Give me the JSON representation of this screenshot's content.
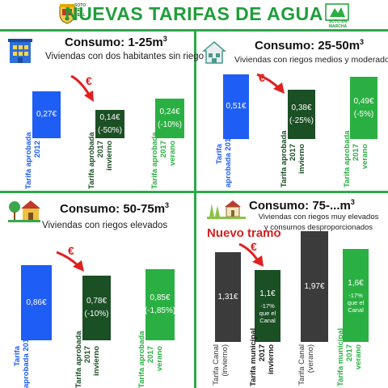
{
  "header": {
    "title": "NUEVAS TARIFAS DE AGUA",
    "logo_left_text": "SOTO DEL REAL",
    "logo_right_text": "SOTO EN MARCHA"
  },
  "colors": {
    "accent_green": "#2da84a",
    "bar_blue": "#1f5ef5",
    "bar_dark_green": "#1b4f24",
    "bar_green": "#2ab042",
    "bar_grey": "#3b3b3b",
    "arrow_red": "#e02020"
  },
  "euro_symbol": "€",
  "q1": {
    "title": "Consumo: 1-25m",
    "sup": "3",
    "subtitle": "Viviendas con dos habitantes sin riego",
    "icon": "building-icon",
    "bars": [
      {
        "value": "0,27€",
        "pct": "",
        "label1": "Tarifa aprobada",
        "label2": "2012",
        "label3": ""
      },
      {
        "value": "0,14€",
        "pct": "(-50%)",
        "label1": "Tarifa aprobada",
        "label2": "2017",
        "label3": "invierno"
      },
      {
        "value": "0,24€",
        "pct": "(-10%)",
        "label1": "Tarifa aprobada",
        "label2": "2017",
        "label3": "verano"
      }
    ]
  },
  "q2": {
    "title": "Consumo: 25-50m",
    "sup": "3",
    "subtitle": "Viviendas con riegos medios y moderados",
    "icon": "house-icon",
    "bars": [
      {
        "value": "0,51€",
        "pct": "",
        "label1": "Tarifa",
        "label2": "aprobada 2012",
        "label3": ""
      },
      {
        "value": "0,38€",
        "pct": "(-25%)",
        "label1": "Tarifa aprobada",
        "label2": "2017",
        "label3": "invierno"
      },
      {
        "value": "0,49€",
        "pct": "(-5%)",
        "label1": "Tarifa aprobada",
        "label2": "2017",
        "label3": "verano"
      }
    ]
  },
  "q3": {
    "title": "Consumo: 50-75m",
    "sup": "3",
    "subtitle": "Viviendas con riegos elevados",
    "icon": "house-tree-icon",
    "bars": [
      {
        "value": "0,86€",
        "pct": "",
        "label1": "Tarifa",
        "label2": "aprobada 2012",
        "label3": ""
      },
      {
        "value": "0,78€",
        "pct": "(-10%)",
        "label1": "Tarifa aprobada",
        "label2": "2017",
        "label3": "invierno"
      },
      {
        "value": "0,85€",
        "pct": "(-1,85%)",
        "label1": "Tarifa aprobada",
        "label2": "2017",
        "label3": "verano"
      }
    ]
  },
  "q4": {
    "title": "Consumo: 75-...m",
    "sup": "3",
    "subtitle": "Viviendas con riegos muy elevados y consumos desproporcionados",
    "new_tier": "Nuevo tramo",
    "icon": "garden-house-icon",
    "bars": [
      {
        "value": "1,31€",
        "pct": "",
        "label1": "Tarifa Canal",
        "label2": "(invierno)",
        "label3": ""
      },
      {
        "value": "1,1€",
        "pct": "-17% que el Canal",
        "label1": "Tarifa municipal",
        "label2": "2017",
        "label3": "invierno"
      },
      {
        "value": "1,97€",
        "pct": "",
        "label1": "Tarifa Canal",
        "label2": "(verano)",
        "label3": ""
      },
      {
        "value": "1,6€",
        "pct": "-17% que el Canal",
        "label1": "Tarifa municipal",
        "label2": "2017",
        "label3": "verano"
      }
    ]
  }
}
